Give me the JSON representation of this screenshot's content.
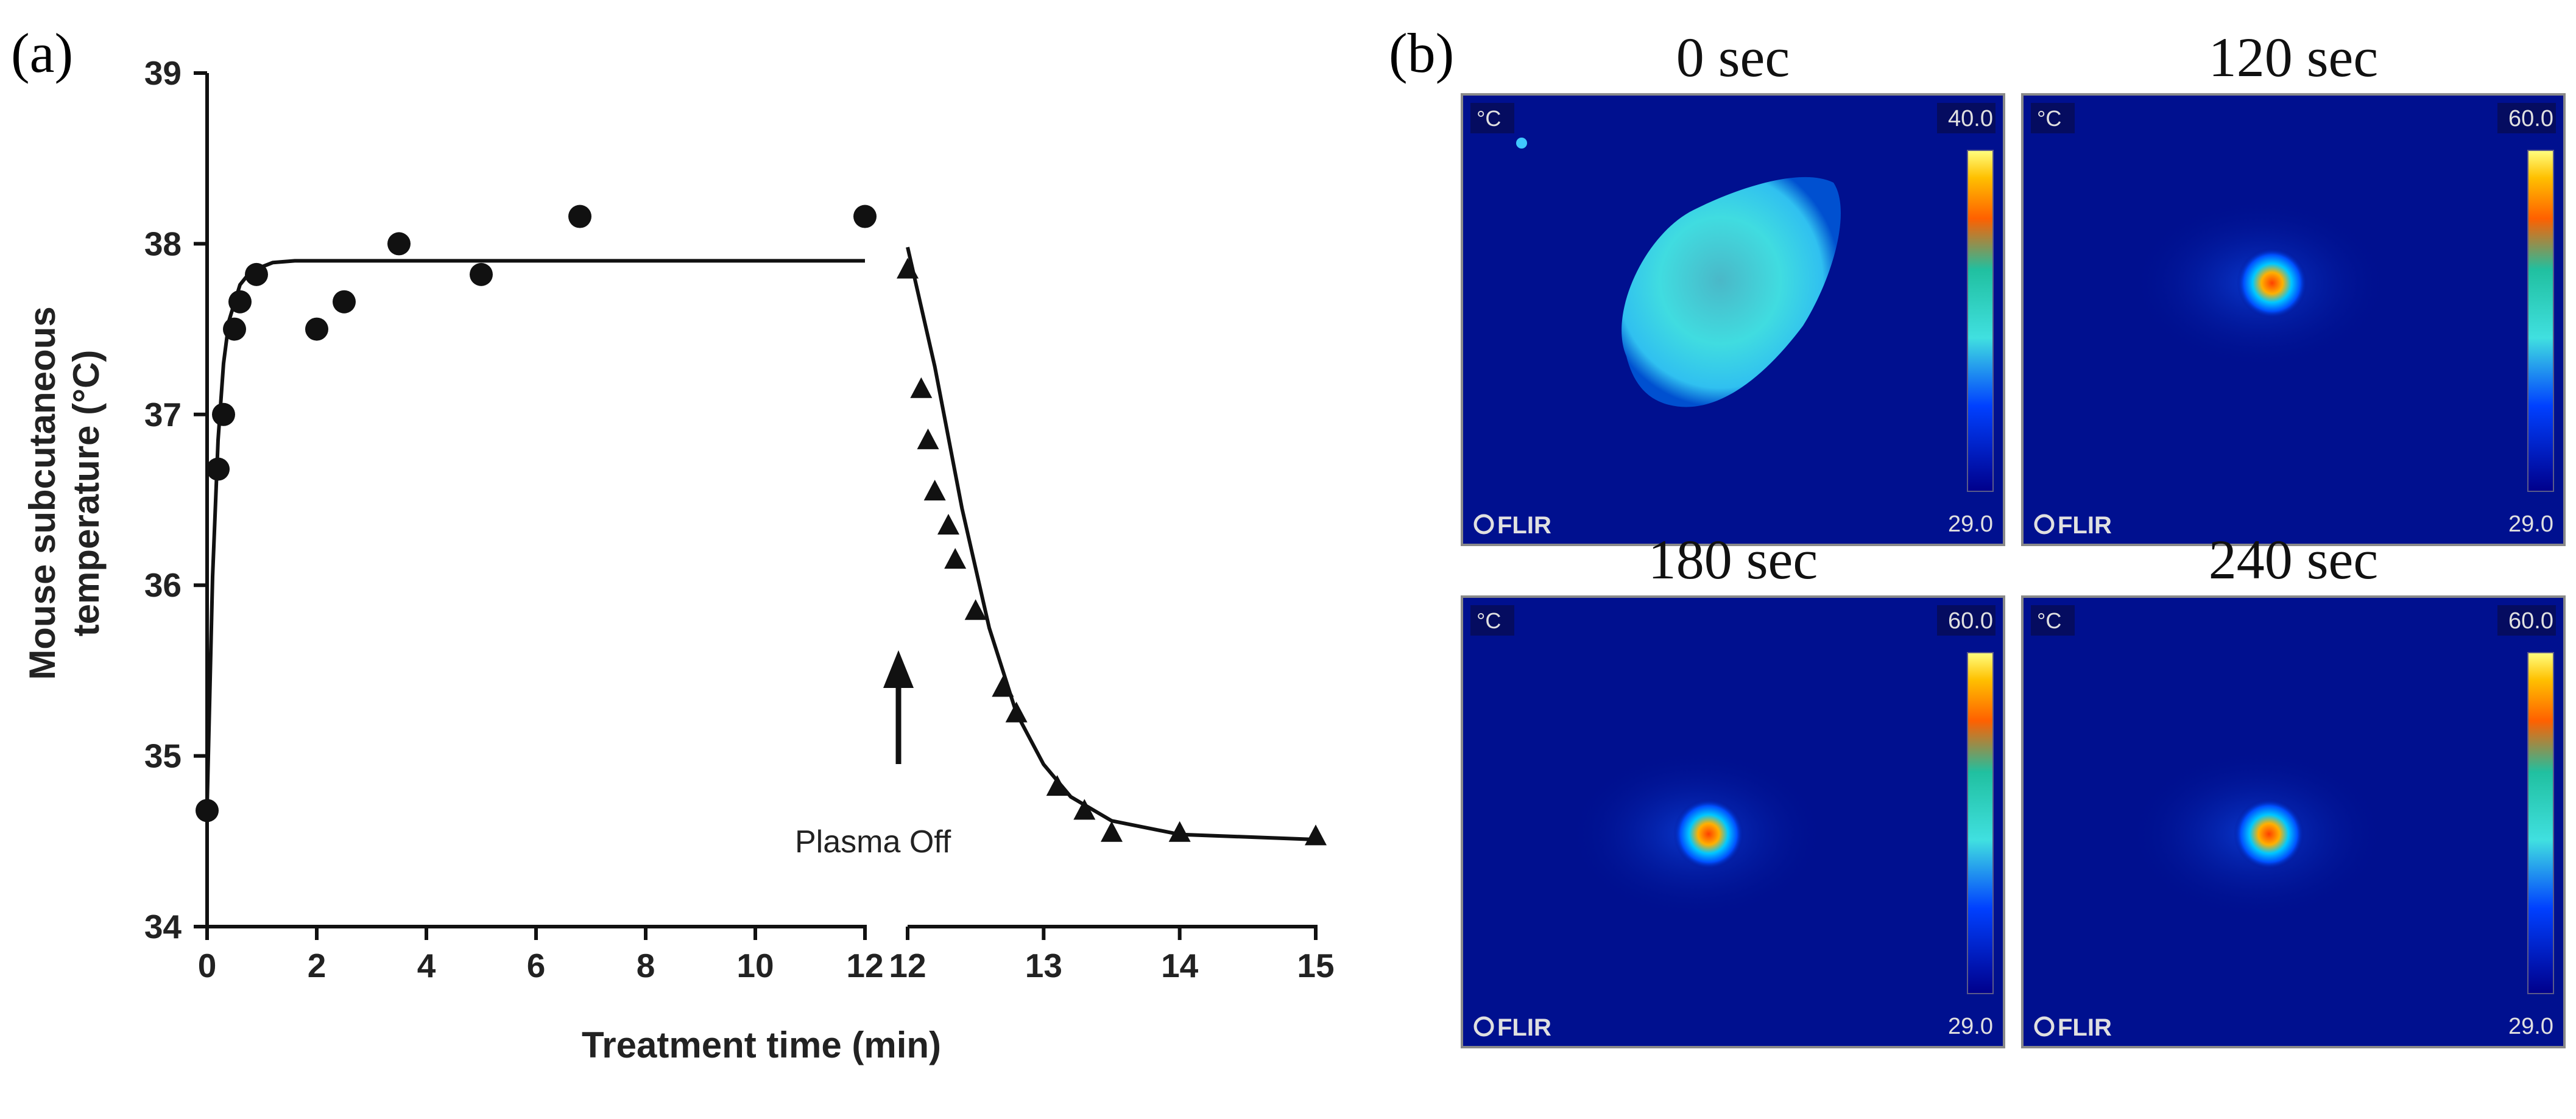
{
  "panel_a": {
    "label": "(a)",
    "annotation": "Plasma Off"
  },
  "panel_b": {
    "label": "(b)",
    "brand": "FLIR",
    "unit": "°C",
    "images": [
      {
        "title": "0 sec",
        "scale_max": "40.0",
        "scale_min": "29.0",
        "colors": {
          "bg": "#00108f",
          "hot": "#4ee8dc"
        }
      },
      {
        "title": "120 sec",
        "scale_max": "60.0",
        "scale_min": "29.0",
        "colors": {
          "bg": "#00108f",
          "hot": "#ff7a00"
        }
      },
      {
        "title": "180 sec",
        "scale_max": "60.0",
        "scale_min": "29.0",
        "colors": {
          "bg": "#00108f",
          "hot": "#ff7a00"
        }
      },
      {
        "title": "240 sec",
        "scale_max": "60.0",
        "scale_min": "29.0",
        "colors": {
          "bg": "#00108f",
          "hot": "#ff7a00"
        }
      }
    ]
  },
  "chart_data": {
    "type": "scatter",
    "title": "",
    "xlabel": "Treatment time (min)",
    "ylabel": "Mouse subcutaneous temperature (°C)",
    "ylabel_lines": [
      "Mouse subcutaneous",
      "temperature (°C)"
    ],
    "ylim": [
      34,
      39
    ],
    "y_ticks": [
      "34",
      "35",
      "36",
      "37",
      "38",
      "39"
    ],
    "x_segments": [
      {
        "range": [
          0,
          12
        ],
        "ticks": [
          "0",
          "2",
          "4",
          "6",
          "8",
          "10",
          "12"
        ]
      },
      {
        "range": [
          12,
          15
        ],
        "ticks": [
          "12",
          "13",
          "14",
          "15"
        ]
      }
    ],
    "grid": false,
    "series": [
      {
        "marker": "circle",
        "segment": 0,
        "points": [
          [
            0.0,
            34.68
          ],
          [
            0.2,
            36.68
          ],
          [
            0.3,
            37.0
          ],
          [
            0.5,
            37.5
          ],
          [
            0.6,
            37.66
          ],
          [
            0.9,
            37.82
          ],
          [
            2.0,
            37.5
          ],
          [
            2.5,
            37.66
          ],
          [
            3.5,
            38.0
          ],
          [
            5.0,
            37.82
          ],
          [
            6.8,
            38.16
          ],
          [
            12.0,
            38.16
          ]
        ],
        "fit": [
          [
            0.0,
            34.7
          ],
          [
            0.1,
            36.05
          ],
          [
            0.2,
            36.85
          ],
          [
            0.3,
            37.3
          ],
          [
            0.4,
            37.55
          ],
          [
            0.6,
            37.76
          ],
          [
            0.8,
            37.84
          ],
          [
            1.2,
            37.89
          ],
          [
            1.6,
            37.9
          ],
          [
            2.5,
            37.9
          ],
          [
            12.0,
            37.9
          ]
        ]
      },
      {
        "marker": "triangle",
        "segment": 1,
        "points": [
          [
            12.0,
            37.85
          ],
          [
            12.1,
            37.15
          ],
          [
            12.15,
            36.85
          ],
          [
            12.2,
            36.55
          ],
          [
            12.3,
            36.35
          ],
          [
            12.35,
            36.15
          ],
          [
            12.5,
            35.85
          ],
          [
            12.7,
            35.4
          ],
          [
            12.8,
            35.25
          ],
          [
            13.1,
            34.82
          ],
          [
            13.3,
            34.68
          ],
          [
            13.5,
            34.55
          ],
          [
            14.0,
            34.55
          ],
          [
            15.0,
            34.53
          ]
        ],
        "fit": [
          [
            12.0,
            37.98
          ],
          [
            12.2,
            37.28
          ],
          [
            12.4,
            36.45
          ],
          [
            12.6,
            35.75
          ],
          [
            12.8,
            35.25
          ],
          [
            13.0,
            34.95
          ],
          [
            13.2,
            34.76
          ],
          [
            13.5,
            34.62
          ],
          [
            14.0,
            34.54
          ],
          [
            15.0,
            34.51
          ]
        ]
      }
    ]
  }
}
